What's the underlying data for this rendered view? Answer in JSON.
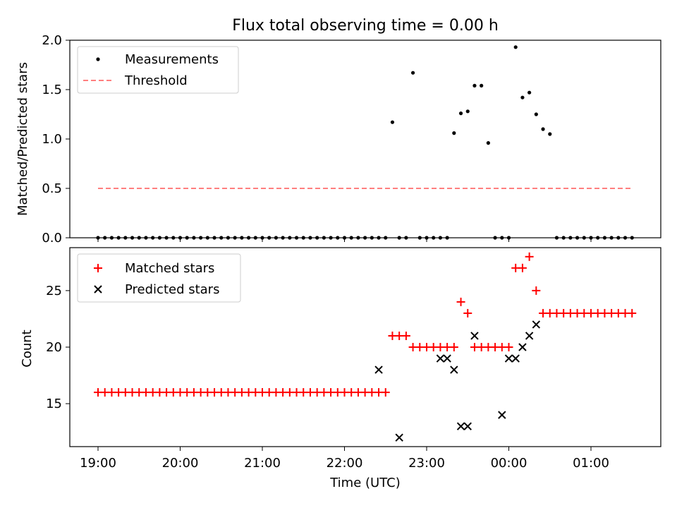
{
  "title": "Flux total observing time = 0.00 h",
  "chart_data": [
    {
      "type": "scatter",
      "panel": "top",
      "ylabel": "Matched/Predicted stars",
      "ylim": [
        0,
        2.0
      ],
      "yticks": [
        "0.0",
        "0.5",
        "1.0",
        "1.5",
        "2.0"
      ],
      "x_unit": "hours since 19:00 UTC",
      "legend": {
        "position": "top-left",
        "entries": [
          "Measurements",
          "Threshold"
        ]
      },
      "series": [
        {
          "name": "Measurements",
          "x": [
            0,
            0.0833,
            0.1667,
            0.25,
            0.3333,
            0.4167,
            0.5,
            0.5833,
            0.6667,
            0.75,
            0.8333,
            0.9167,
            1,
            1.0833,
            1.1667,
            1.25,
            1.3333,
            1.4167,
            1.5,
            1.5833,
            1.6667,
            1.75,
            1.8333,
            1.9167,
            2,
            2.0833,
            2.1667,
            2.25,
            2.3333,
            2.4167,
            2.5,
            2.5833,
            2.6667,
            2.75,
            2.8333,
            2.9167,
            3,
            3.0833,
            3.1667,
            3.25,
            3.3333,
            3.4167,
            3.5,
            3.5833,
            3.6667,
            3.75,
            3.8333,
            3.9167,
            4,
            4.0833,
            4.1667,
            4.25,
            4.3333,
            4.4167,
            4.5,
            4.5833,
            4.6667,
            4.75,
            4.8333,
            4.9167,
            5,
            5.0833,
            5.1667,
            5.25,
            5.3333,
            5.4167,
            5.5,
            5.5833,
            5.6667,
            5.75,
            5.8333,
            5.9167,
            6,
            6.0833,
            6.1667,
            6.25,
            6.3333,
            6.4167,
            6.5
          ],
          "y": [
            0,
            0,
            0,
            0,
            0,
            0,
            0,
            0,
            0,
            0,
            0,
            0,
            0,
            0,
            0,
            0,
            0,
            0,
            0,
            0,
            0,
            0,
            0,
            0,
            0,
            0,
            0,
            0,
            0,
            0,
            0,
            0,
            0,
            0,
            0,
            0,
            0,
            0,
            0,
            0,
            0,
            0,
            0,
            1.17,
            0,
            0,
            1.67,
            0,
            0,
            0,
            0,
            0,
            1.06,
            1.26,
            1.28,
            1.54,
            1.54,
            0.96,
            0,
            0,
            0,
            1.93,
            1.42,
            1.47,
            1.25,
            1.1,
            1.05,
            0,
            0,
            0,
            0,
            0,
            0,
            0,
            0,
            0,
            0,
            0,
            0
          ],
          "color": "#000000"
        },
        {
          "name": "Threshold",
          "x": [
            0,
            6.5
          ],
          "y": [
            0.5,
            0.5
          ],
          "color": "#ff7f7f",
          "style": "dashed"
        }
      ]
    },
    {
      "type": "scatter",
      "panel": "bottom",
      "ylabel": "Count",
      "xlabel": "Time (UTC)",
      "ylim": [
        11.2,
        28.8
      ],
      "yticks": [
        "15",
        "20",
        "25"
      ],
      "xticks": [
        "19:00",
        "20:00",
        "21:00",
        "22:00",
        "23:00",
        "00:00",
        "01:00"
      ],
      "x_unit": "hours since 19:00 UTC",
      "legend": {
        "position": "top-left",
        "entries": [
          "Matched stars",
          "Predicted stars"
        ]
      },
      "series": [
        {
          "name": "Matched stars",
          "x": [
            0,
            0.0833,
            0.1667,
            0.25,
            0.3333,
            0.4167,
            0.5,
            0.5833,
            0.6667,
            0.75,
            0.8333,
            0.9167,
            1,
            1.0833,
            1.1667,
            1.25,
            1.3333,
            1.4167,
            1.5,
            1.5833,
            1.6667,
            1.75,
            1.8333,
            1.9167,
            2,
            2.0833,
            2.1667,
            2.25,
            2.3333,
            2.4167,
            2.5,
            2.5833,
            2.6667,
            2.75,
            2.8333,
            2.9167,
            3,
            3.0833,
            3.1667,
            3.25,
            3.3333,
            3.4167,
            3.5,
            3.5833,
            3.6667,
            3.75,
            3.8333,
            3.9167,
            4,
            4.0833,
            4.1667,
            4.25,
            4.3333,
            4.4167,
            4.5,
            4.5833,
            4.6667,
            4.75,
            4.8333,
            4.9167,
            5,
            5.0833,
            5.1667,
            5.25,
            5.3333,
            5.4167,
            5.5,
            5.5833,
            5.6667,
            5.75,
            5.8333,
            5.9167,
            6,
            6.0833,
            6.1667,
            6.25,
            6.3333,
            6.4167,
            6.5
          ],
          "y": [
            16,
            16,
            16,
            16,
            16,
            16,
            16,
            16,
            16,
            16,
            16,
            16,
            16,
            16,
            16,
            16,
            16,
            16,
            16,
            16,
            16,
            16,
            16,
            16,
            16,
            16,
            16,
            16,
            16,
            16,
            16,
            16,
            16,
            16,
            16,
            16,
            16,
            16,
            16,
            16,
            16,
            16,
            16,
            21,
            21,
            21,
            20,
            20,
            20,
            20,
            20,
            20,
            20,
            24,
            23,
            20,
            20,
            20,
            20,
            20,
            20,
            27,
            27,
            28,
            25,
            23,
            23,
            23,
            23,
            23,
            23,
            23,
            23,
            23,
            23,
            23,
            23,
            23,
            23
          ],
          "color": "#ff0000"
        },
        {
          "name": "Predicted stars",
          "x": [
            3.4167,
            3.6667,
            4.1667,
            4.25,
            4.3333,
            4.4167,
            4.5,
            4.5833,
            4.9167,
            5.0,
            5.0833,
            5.1667,
            5.25,
            5.3333
          ],
          "y": [
            18,
            12,
            19,
            19,
            18,
            13,
            13,
            21,
            14,
            19,
            19,
            20,
            21,
            22
          ],
          "color": "#000000"
        }
      ]
    }
  ]
}
